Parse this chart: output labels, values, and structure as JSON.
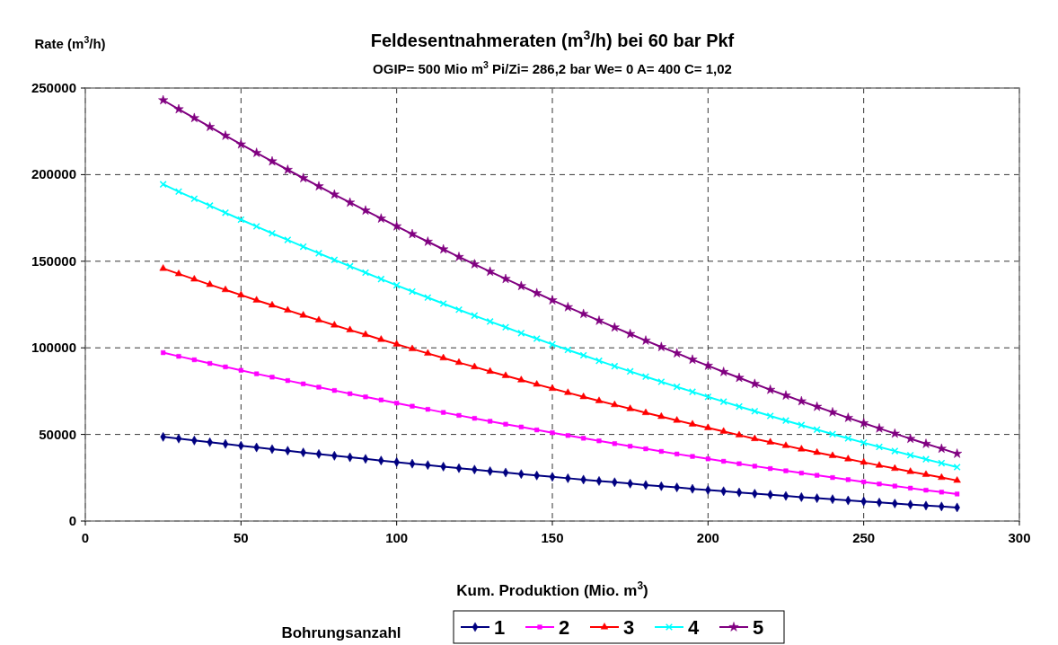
{
  "chart_data": {
    "type": "line",
    "title": "Feldesentnahmeraten (m$^{3}$/h) bei 60 bar Pkf",
    "subtitle": "OGIP= 500 Mio m$^{3}$ Pi/Zi= 286,2 bar We= 0 A= 400 C= 1,02",
    "xlabel": "Kum. Produktion (Mio. m$^{3}$)",
    "ylabel": "Rate (m$^{3}$/h)",
    "legend_title": "Bohrungsanzahl",
    "legend": "bottom",
    "grid": true,
    "line_style": "solid",
    "x": [
      25,
      30,
      35,
      40,
      45,
      50,
      55,
      60,
      65,
      70,
      75,
      80,
      85,
      90,
      95,
      100,
      105,
      110,
      115,
      120,
      125,
      130,
      135,
      140,
      145,
      150,
      155,
      160,
      165,
      170,
      175,
      180,
      185,
      190,
      195,
      200,
      205,
      210,
      215,
      220,
      225,
      230,
      235,
      240,
      245,
      250,
      255,
      260,
      265,
      270,
      275,
      280
    ],
    "xlim": [
      0,
      300
    ],
    "xticks": [
      0,
      50,
      100,
      150,
      200,
      250,
      300
    ],
    "ylim": [
      0,
      250000
    ],
    "yticks": [
      0,
      50000,
      100000,
      150000,
      200000,
      250000
    ],
    "series": [
      {
        "name": "1",
        "color": "#000080",
        "marker": "diamond",
        "values": [
          48600,
          47600,
          46500,
          45500,
          44500,
          43500,
          42500,
          41500,
          40600,
          39600,
          38700,
          37700,
          36800,
          35900,
          34900,
          34000,
          33100,
          32300,
          31400,
          30500,
          29700,
          28800,
          28000,
          27100,
          26300,
          25500,
          24700,
          23900,
          23100,
          22400,
          21600,
          20800,
          20100,
          19400,
          18600,
          17900,
          17200,
          16500,
          15800,
          15200,
          14500,
          13800,
          13200,
          12600,
          11900,
          11300,
          10700,
          10100,
          9500,
          8900,
          8400,
          7800
        ]
      },
      {
        "name": "2",
        "color": "#ff00ff",
        "marker": "square",
        "values": [
          97200,
          95100,
          93100,
          91000,
          89000,
          87000,
          85000,
          83100,
          81100,
          79200,
          77300,
          75400,
          73500,
          71700,
          69900,
          68100,
          66300,
          64500,
          62700,
          61000,
          59300,
          57600,
          55900,
          54300,
          52600,
          51000,
          49400,
          47800,
          46300,
          44700,
          43200,
          41700,
          40200,
          38700,
          37300,
          35900,
          34500,
          33100,
          31700,
          30300,
          29000,
          27700,
          26400,
          25100,
          23900,
          22600,
          21400,
          20200,
          19000,
          17800,
          16700,
          15600
        ]
      },
      {
        "name": "3",
        "color": "#ff0000",
        "marker": "triangle",
        "values": [
          145800,
          142700,
          139600,
          136500,
          133500,
          130500,
          127500,
          124600,
          121700,
          118800,
          116000,
          113100,
          110300,
          107600,
          104800,
          102100,
          99400,
          96800,
          94100,
          91500,
          89000,
          86400,
          83900,
          81400,
          78900,
          76500,
          74100,
          71700,
          69400,
          67100,
          64800,
          62500,
          60300,
          58100,
          55900,
          53800,
          51700,
          49600,
          47500,
          45500,
          43500,
          41500,
          39600,
          37700,
          35800,
          33900,
          32100,
          30300,
          28500,
          26800,
          25100,
          23400
        ]
      },
      {
        "name": "4",
        "color": "#00ffff",
        "marker": "cross",
        "values": [
          194400,
          190200,
          186100,
          182100,
          178000,
          174000,
          170100,
          166100,
          162300,
          158400,
          154600,
          150800,
          147100,
          143400,
          139700,
          136100,
          132500,
          129000,
          125500,
          122000,
          118600,
          115200,
          111900,
          108500,
          105300,
          102000,
          98800,
          95700,
          92500,
          89400,
          86400,
          83400,
          80400,
          77500,
          74600,
          71700,
          68900,
          66100,
          63400,
          60700,
          58000,
          55400,
          52800,
          50200,
          47700,
          45200,
          42800,
          40400,
          38000,
          35700,
          33400,
          31100
        ]
      },
      {
        "name": "5",
        "color": "#800080",
        "marker": "star",
        "values": [
          243000,
          237800,
          232700,
          227600,
          222500,
          217500,
          212600,
          207700,
          202800,
          198000,
          193300,
          188500,
          183900,
          179300,
          174700,
          170200,
          165700,
          161300,
          156900,
          152500,
          148300,
          144000,
          139800,
          135700,
          131600,
          127500,
          123500,
          119600,
          115700,
          111800,
          108000,
          104200,
          100500,
          96900,
          93200,
          89700,
          86100,
          82700,
          79200,
          75800,
          72500,
          69200,
          66000,
          62800,
          59600,
          56500,
          53500,
          50500,
          47500,
          44600,
          41800,
          38900
        ]
      }
    ]
  }
}
